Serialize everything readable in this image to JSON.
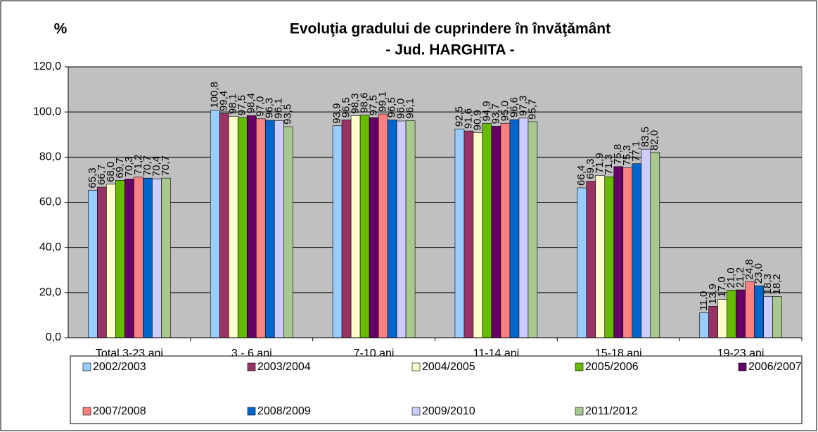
{
  "chart_data": {
    "type": "bar",
    "title": [
      "Evoluţia gradului de cuprindere în învăţământ",
      "- Jud. HARGHITA -"
    ],
    "y_label": "%",
    "categories": [
      "Total 3-23 ani",
      "3 - 6 ani",
      "7-10 ani",
      "11-14 ani",
      "15-18 ani",
      "19-23 ani"
    ],
    "series": [
      {
        "name": "2002/2003",
        "color": "#99ccff",
        "values": [
          65.3,
          100.8,
          93.9,
          92.5,
          66.4,
          11.0
        ],
        "value_labels": [
          "65,3",
          "100,8",
          "93,9",
          "92,5",
          "66,4",
          "11,0"
        ]
      },
      {
        "name": "2003/2004",
        "color": "#993366",
        "values": [
          66.7,
          99.4,
          96.5,
          91.6,
          69.3,
          13.9
        ],
        "value_labels": [
          "66,7",
          "99,4",
          "96,5",
          "91,6",
          "69,3",
          "13,9"
        ]
      },
      {
        "name": "2004/2005",
        "color": "#ffffcc",
        "values": [
          68.0,
          98.1,
          98.3,
          90.9,
          71.9,
          17.0
        ],
        "value_labels": [
          "68,0",
          "98,1",
          "98,3",
          "90,9",
          "71,9",
          "17,0"
        ]
      },
      {
        "name": "2005/2006",
        "color": "#66bb00",
        "values": [
          69.7,
          97.5,
          98.6,
          94.9,
          71.3,
          21.0
        ],
        "value_labels": [
          "69,7",
          "97,5",
          "98,6",
          "94,9",
          "71,3",
          "21,0"
        ]
      },
      {
        "name": "2006/2007",
        "color": "#660066",
        "values": [
          70.3,
          98.4,
          97.5,
          93.7,
          75.8,
          21.2
        ],
        "value_labels": [
          "70,3",
          "98,4",
          "97,5",
          "93,7",
          "75,8",
          "21,2"
        ]
      },
      {
        "name": "2007/2008",
        "color": "#ff8080",
        "values": [
          71.2,
          97.0,
          99.1,
          95.0,
          75.3,
          24.8
        ],
        "value_labels": [
          "71,2",
          "97,0",
          "99,1",
          "95,0",
          "75,3",
          "24,8"
        ]
      },
      {
        "name": "2008/2009",
        "color": "#0066cc",
        "values": [
          70.7,
          96.3,
          96.5,
          96.6,
          77.1,
          23.0
        ],
        "value_labels": [
          "70,7",
          "96,3",
          "96,5",
          "96,6",
          "77,1",
          "23,0"
        ]
      },
      {
        "name": "2009/2010",
        "color": "#ccccff",
        "values": [
          70.4,
          96.1,
          96.0,
          97.3,
          83.5,
          18.3
        ],
        "value_labels": [
          "70,4",
          "96,1",
          "96,0",
          "97,3",
          "83,5",
          "18,3"
        ]
      },
      {
        "name": "2011/2012",
        "color": "#a8c890",
        "values": [
          70.7,
          93.5,
          96.1,
          95.7,
          82.0,
          18.2
        ],
        "value_labels": [
          "70,7",
          "93,5",
          "96,1",
          "95,7",
          "82,0",
          "18,2"
        ]
      }
    ],
    "ylim": [
      0,
      120
    ],
    "yticks": [
      {
        "value": 0,
        "label": "0,0"
      },
      {
        "value": 20,
        "label": "20,0"
      },
      {
        "value": 40,
        "label": "40,0"
      },
      {
        "value": 60,
        "label": "60,0"
      },
      {
        "value": 80,
        "label": "80,0"
      },
      {
        "value": 100,
        "label": "100,0"
      },
      {
        "value": 120,
        "label": "120,0"
      }
    ],
    "grid": true,
    "legend": "bottom"
  }
}
